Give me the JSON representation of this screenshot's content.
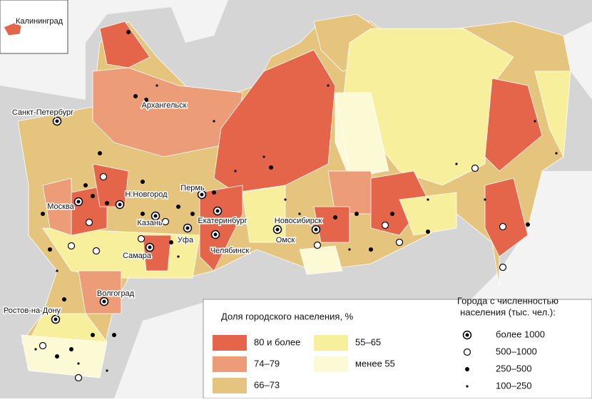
{
  "inset": {
    "label": "Калининград"
  },
  "cities": [
    "Санкт-Петербург",
    "Архангельск",
    "Москва",
    "Н.Новгород",
    "Пермь",
    "Казань",
    "Екатеринбург",
    "Новосибирск",
    "Уфа",
    "Самара",
    "Челябинск",
    "Омск",
    "Ростов-на-Дону",
    "Волгоград"
  ],
  "legend": {
    "share": {
      "title": "Доля городского населения, %",
      "items": [
        {
          "label": "80 и более",
          "color": "#e5654a"
        },
        {
          "label": "74–79",
          "color": "#ec9c76"
        },
        {
          "label": "66–73",
          "color": "#e5c47d"
        },
        {
          "label": "55–65",
          "color": "#f8ef9c"
        },
        {
          "label": "менее 55",
          "color": "#fcf9d5"
        }
      ]
    },
    "cities": {
      "title": [
        "Города с численностью",
        "населения (тыс. чел.):"
      ],
      "items": [
        "более 1000",
        "500–1000",
        "250–500",
        "100–250"
      ]
    }
  }
}
